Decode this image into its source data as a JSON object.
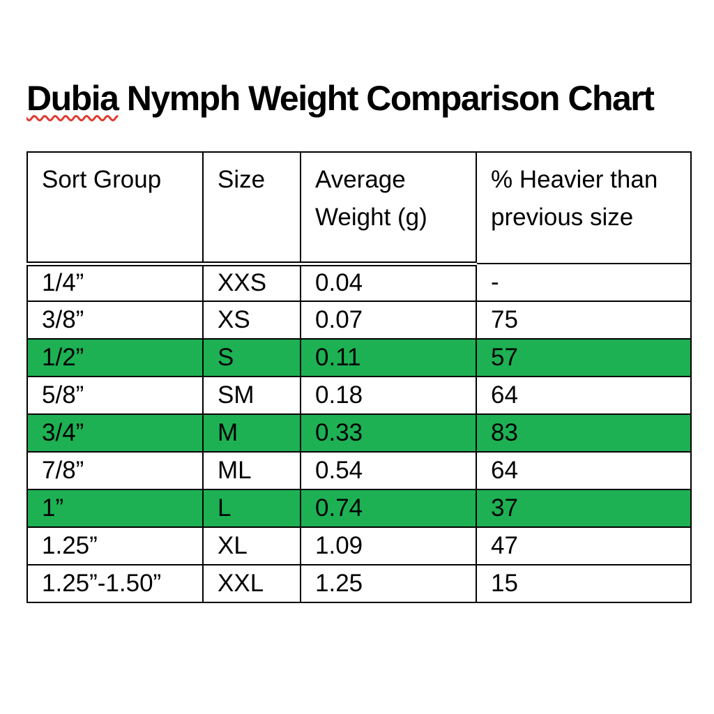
{
  "title": {
    "misspelled_word": "Dubia",
    "rest": " Nymph Weight Comparison Chart",
    "squiggle_color": "#e0392e"
  },
  "table": {
    "columns": [
      "Sort Group",
      "Size",
      "Average Weight (g)",
      "% Heavier than previous size"
    ],
    "highlight_color": "#1db153",
    "rows": [
      {
        "sort_group": "1/4”",
        "size": "XXS",
        "avg_weight_g": "0.04",
        "pct_heavier": "-",
        "highlighted": false
      },
      {
        "sort_group": "3/8”",
        "size": "XS",
        "avg_weight_g": "0.07",
        "pct_heavier": "75",
        "highlighted": false
      },
      {
        "sort_group": "1/2”",
        "size": "S",
        "avg_weight_g": "0.11",
        "pct_heavier": "57",
        "highlighted": true
      },
      {
        "sort_group": "5/8”",
        "size": "SM",
        "avg_weight_g": "0.18",
        "pct_heavier": "64",
        "highlighted": false
      },
      {
        "sort_group": "3/4”",
        "size": "M",
        "avg_weight_g": "0.33",
        "pct_heavier": "83",
        "highlighted": true
      },
      {
        "sort_group": "7/8”",
        "size": "ML",
        "avg_weight_g": "0.54",
        "pct_heavier": "64",
        "highlighted": false
      },
      {
        "sort_group": "1”",
        "size": "L",
        "avg_weight_g": "0.74",
        "pct_heavier": "37",
        "highlighted": true
      },
      {
        "sort_group": "1.25”",
        "size": "XL",
        "avg_weight_g": "1.09",
        "pct_heavier": "47",
        "highlighted": false
      },
      {
        "sort_group": "1.25”-1.50”",
        "size": "XXL",
        "avg_weight_g": "1.25",
        "pct_heavier": "15",
        "highlighted": false
      }
    ]
  },
  "chart_data": {
    "type": "table",
    "title": "Dubia Nymph Weight Comparison Chart",
    "columns": [
      "Sort Group",
      "Size",
      "Average Weight (g)",
      "% Heavier than previous size"
    ],
    "rows": [
      [
        "1/4”",
        "XXS",
        0.04,
        null
      ],
      [
        "3/8”",
        "XS",
        0.07,
        75
      ],
      [
        "1/2”",
        "S",
        0.11,
        57
      ],
      [
        "5/8”",
        "SM",
        0.18,
        64
      ],
      [
        "3/4”",
        "M",
        0.33,
        83
      ],
      [
        "7/8”",
        "ML",
        0.54,
        64
      ],
      [
        "1”",
        "L",
        0.74,
        37
      ],
      [
        "1.25”",
        "XL",
        1.09,
        47
      ],
      [
        "1.25”-1.50”",
        "XXL",
        1.25,
        15
      ]
    ],
    "highlighted_row_indices": [
      2,
      4,
      6
    ]
  }
}
